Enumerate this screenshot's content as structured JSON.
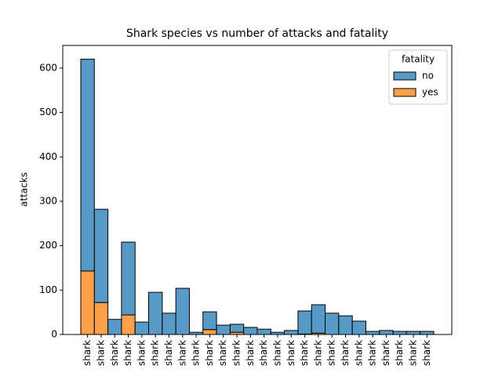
{
  "chart_data": {
    "type": "bar",
    "stacked": true,
    "title": "Shark species vs number of attacks and fatality",
    "y_label": "attacks",
    "legend_title": "fatality",
    "legend_position": "upper right",
    "categories": [
      "shark",
      "shark",
      "shark",
      "shark",
      "shark",
      "shark",
      "shark",
      "shark",
      "shark",
      "shark",
      "shark",
      "shark",
      "shark",
      "shark",
      "shark",
      "shark",
      "shark",
      "shark",
      "shark",
      "shark",
      "shark",
      "shark",
      "shark",
      "shark",
      "shark",
      "shark"
    ],
    "series": [
      {
        "name": "no",
        "color": "#579ac7",
        "values": [
          477,
          210,
          34,
          164,
          28,
          95,
          48,
          104,
          5,
          40,
          21,
          18,
          16,
          12,
          5,
          9,
          52,
          64,
          48,
          42,
          30,
          7,
          9,
          7,
          7,
          7
        ]
      },
      {
        "name": "yes",
        "color": "#ff9f4a",
        "values": [
          143,
          72,
          0,
          44,
          0,
          0,
          0,
          0,
          0,
          11,
          0,
          5,
          0,
          0,
          0,
          0,
          1,
          3,
          0,
          0,
          0,
          0,
          0,
          0,
          0,
          0
        ]
      }
    ],
    "ylim": [
      0,
      651
    ],
    "yticks": [
      0,
      100,
      200,
      300,
      400,
      500,
      600
    ],
    "grid": false
  }
}
